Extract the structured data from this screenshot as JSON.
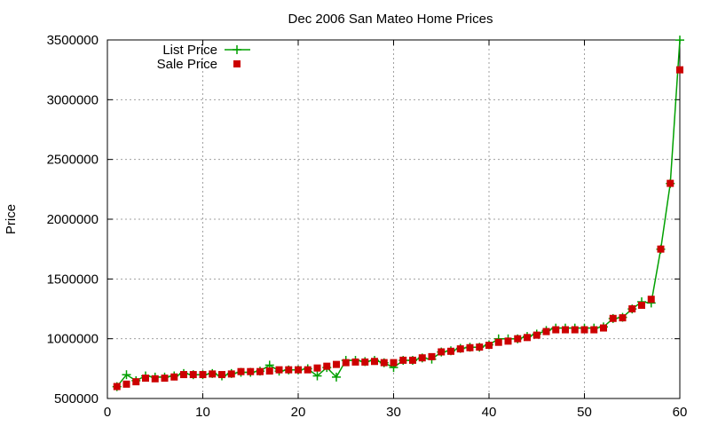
{
  "colors": {
    "list_price": "#00a000",
    "sale_price": "#cc0000",
    "axis": "#000000",
    "grid": "#a0a0a0"
  },
  "chart_data": {
    "type": "line",
    "title": "Dec 2006 San Mateo Home Prices",
    "xlabel": "",
    "ylabel": "Price",
    "xlim": [
      0,
      60
    ],
    "ylim": [
      500000,
      3500000
    ],
    "x_ticks": [
      "0",
      "10",
      "20",
      "30",
      "40",
      "50",
      "60"
    ],
    "y_ticks": [
      "500000",
      "1000000",
      "1500000",
      "2000000",
      "2500000",
      "3000000",
      "3500000"
    ],
    "grid": true,
    "legend_position": "top-left",
    "x": [
      1,
      2,
      3,
      4,
      5,
      6,
      7,
      8,
      9,
      10,
      11,
      12,
      13,
      14,
      15,
      16,
      17,
      18,
      19,
      20,
      21,
      22,
      23,
      24,
      25,
      26,
      27,
      28,
      29,
      30,
      31,
      32,
      33,
      34,
      35,
      36,
      37,
      38,
      39,
      40,
      41,
      42,
      43,
      44,
      45,
      46,
      47,
      48,
      49,
      50,
      51,
      52,
      53,
      54,
      55,
      56,
      57,
      58,
      59,
      60
    ],
    "series": [
      {
        "name": "List Price",
        "style": "lines+plus",
        "values": [
          599000,
          699000,
          649000,
          689000,
          679000,
          679000,
          689000,
          709000,
          699000,
          699000,
          709000,
          689000,
          709000,
          719000,
          719000,
          729000,
          779000,
          729000,
          739000,
          739000,
          749000,
          689000,
          759000,
          679000,
          819000,
          819000,
          809000,
          819000,
          799000,
          759000,
          819000,
          819000,
          839000,
          829000,
          889000,
          899000,
          919000,
          929000,
          929000,
          949000,
          999000,
          999000,
          999000,
          1019000,
          1039000,
          1069000,
          1089000,
          1089000,
          1089000,
          1089000,
          1089000,
          1099000,
          1169000,
          1179000,
          1249000,
          1309000,
          1299000,
          1749000,
          2299000,
          3499000
        ]
      },
      {
        "name": "Sale Price",
        "style": "points+square",
        "values": [
          600000,
          620000,
          640000,
          670000,
          665000,
          670000,
          680000,
          700000,
          700000,
          700000,
          705000,
          700000,
          705000,
          725000,
          725000,
          725000,
          730000,
          740000,
          740000,
          740000,
          740000,
          755000,
          770000,
          785000,
          800000,
          805000,
          805000,
          810000,
          800000,
          800000,
          820000,
          820000,
          840000,
          850000,
          890000,
          895000,
          915000,
          925000,
          930000,
          945000,
          970000,
          980000,
          1000000,
          1010000,
          1030000,
          1060000,
          1075000,
          1075000,
          1075000,
          1075000,
          1075000,
          1090000,
          1170000,
          1175000,
          1250000,
          1280000,
          1330000,
          1750000,
          2300000,
          3250000
        ]
      }
    ]
  }
}
